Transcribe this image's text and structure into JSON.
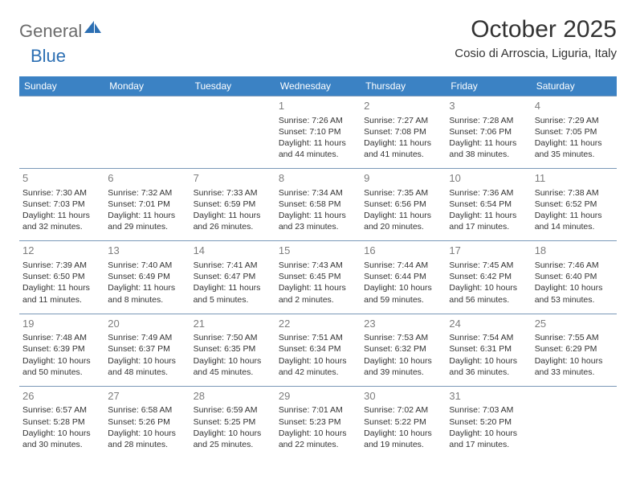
{
  "logo": {
    "part1": "General",
    "part2": "Blue"
  },
  "title": "October 2025",
  "location": "Cosio di Arroscia, Liguria, Italy",
  "day_headers": [
    "Sunday",
    "Monday",
    "Tuesday",
    "Wednesday",
    "Thursday",
    "Friday",
    "Saturday"
  ],
  "colors": {
    "header_bg": "#3b82c4",
    "header_text": "#ffffff",
    "cell_border": "#7a98b8",
    "daynum": "#7d7d7d",
    "body_text": "#333333",
    "logo_gray": "#6b6b6b",
    "logo_blue": "#2c6fb3",
    "page_bg": "#ffffff"
  },
  "typography": {
    "title_fontsize": 30,
    "location_fontsize": 15,
    "header_fontsize": 12,
    "daynum_fontsize": 13,
    "cell_fontsize": 10.5
  },
  "layout": {
    "columns": 7,
    "rows": 5,
    "leading_blanks": 3
  },
  "days": [
    {
      "n": "1",
      "sunrise": "7:26 AM",
      "sunset": "7:10 PM",
      "daylight": "11 hours and 44 minutes."
    },
    {
      "n": "2",
      "sunrise": "7:27 AM",
      "sunset": "7:08 PM",
      "daylight": "11 hours and 41 minutes."
    },
    {
      "n": "3",
      "sunrise": "7:28 AM",
      "sunset": "7:06 PM",
      "daylight": "11 hours and 38 minutes."
    },
    {
      "n": "4",
      "sunrise": "7:29 AM",
      "sunset": "7:05 PM",
      "daylight": "11 hours and 35 minutes."
    },
    {
      "n": "5",
      "sunrise": "7:30 AM",
      "sunset": "7:03 PM",
      "daylight": "11 hours and 32 minutes."
    },
    {
      "n": "6",
      "sunrise": "7:32 AM",
      "sunset": "7:01 PM",
      "daylight": "11 hours and 29 minutes."
    },
    {
      "n": "7",
      "sunrise": "7:33 AM",
      "sunset": "6:59 PM",
      "daylight": "11 hours and 26 minutes."
    },
    {
      "n": "8",
      "sunrise": "7:34 AM",
      "sunset": "6:58 PM",
      "daylight": "11 hours and 23 minutes."
    },
    {
      "n": "9",
      "sunrise": "7:35 AM",
      "sunset": "6:56 PM",
      "daylight": "11 hours and 20 minutes."
    },
    {
      "n": "10",
      "sunrise": "7:36 AM",
      "sunset": "6:54 PM",
      "daylight": "11 hours and 17 minutes."
    },
    {
      "n": "11",
      "sunrise": "7:38 AM",
      "sunset": "6:52 PM",
      "daylight": "11 hours and 14 minutes."
    },
    {
      "n": "12",
      "sunrise": "7:39 AM",
      "sunset": "6:50 PM",
      "daylight": "11 hours and 11 minutes."
    },
    {
      "n": "13",
      "sunrise": "7:40 AM",
      "sunset": "6:49 PM",
      "daylight": "11 hours and 8 minutes."
    },
    {
      "n": "14",
      "sunrise": "7:41 AM",
      "sunset": "6:47 PM",
      "daylight": "11 hours and 5 minutes."
    },
    {
      "n": "15",
      "sunrise": "7:43 AM",
      "sunset": "6:45 PM",
      "daylight": "11 hours and 2 minutes."
    },
    {
      "n": "16",
      "sunrise": "7:44 AM",
      "sunset": "6:44 PM",
      "daylight": "10 hours and 59 minutes."
    },
    {
      "n": "17",
      "sunrise": "7:45 AM",
      "sunset": "6:42 PM",
      "daylight": "10 hours and 56 minutes."
    },
    {
      "n": "18",
      "sunrise": "7:46 AM",
      "sunset": "6:40 PM",
      "daylight": "10 hours and 53 minutes."
    },
    {
      "n": "19",
      "sunrise": "7:48 AM",
      "sunset": "6:39 PM",
      "daylight": "10 hours and 50 minutes."
    },
    {
      "n": "20",
      "sunrise": "7:49 AM",
      "sunset": "6:37 PM",
      "daylight": "10 hours and 48 minutes."
    },
    {
      "n": "21",
      "sunrise": "7:50 AM",
      "sunset": "6:35 PM",
      "daylight": "10 hours and 45 minutes."
    },
    {
      "n": "22",
      "sunrise": "7:51 AM",
      "sunset": "6:34 PM",
      "daylight": "10 hours and 42 minutes."
    },
    {
      "n": "23",
      "sunrise": "7:53 AM",
      "sunset": "6:32 PM",
      "daylight": "10 hours and 39 minutes."
    },
    {
      "n": "24",
      "sunrise": "7:54 AM",
      "sunset": "6:31 PM",
      "daylight": "10 hours and 36 minutes."
    },
    {
      "n": "25",
      "sunrise": "7:55 AM",
      "sunset": "6:29 PM",
      "daylight": "10 hours and 33 minutes."
    },
    {
      "n": "26",
      "sunrise": "6:57 AM",
      "sunset": "5:28 PM",
      "daylight": "10 hours and 30 minutes."
    },
    {
      "n": "27",
      "sunrise": "6:58 AM",
      "sunset": "5:26 PM",
      "daylight": "10 hours and 28 minutes."
    },
    {
      "n": "28",
      "sunrise": "6:59 AM",
      "sunset": "5:25 PM",
      "daylight": "10 hours and 25 minutes."
    },
    {
      "n": "29",
      "sunrise": "7:01 AM",
      "sunset": "5:23 PM",
      "daylight": "10 hours and 22 minutes."
    },
    {
      "n": "30",
      "sunrise": "7:02 AM",
      "sunset": "5:22 PM",
      "daylight": "10 hours and 19 minutes."
    },
    {
      "n": "31",
      "sunrise": "7:03 AM",
      "sunset": "5:20 PM",
      "daylight": "10 hours and 17 minutes."
    }
  ],
  "labels": {
    "sunrise": "Sunrise: ",
    "sunset": "Sunset: ",
    "daylight": "Daylight: "
  }
}
